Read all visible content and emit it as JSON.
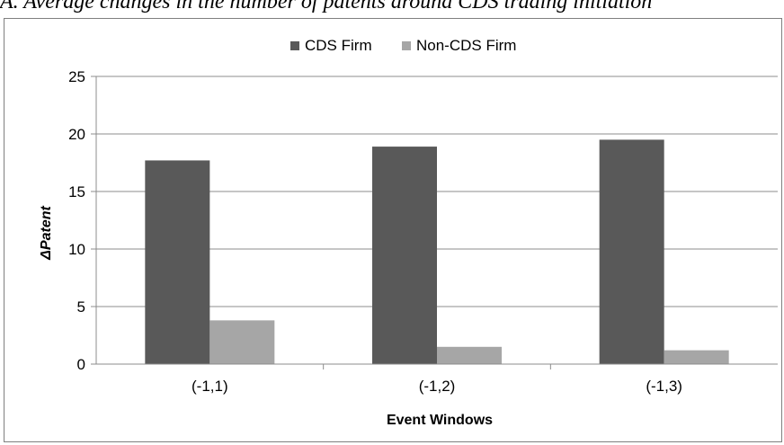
{
  "caption": "A. Average changes in the number of patents around CDS trading initiation",
  "colors": {
    "cds": "#595959",
    "non_cds": "#a6a6a6",
    "grid": "#8c8c8c",
    "axis": "#8c8c8c"
  },
  "chart_data": {
    "type": "bar",
    "title": "",
    "xlabel": "Event Windows",
    "ylabel": "ΔPatent",
    "categories": [
      "(-1,1)",
      "(-1,2)",
      "(-1,3)"
    ],
    "series": [
      {
        "name": "CDS Firm",
        "values": [
          17.7,
          18.9,
          19.5
        ]
      },
      {
        "name": "Non-CDS Firm",
        "values": [
          3.8,
          1.5,
          1.2
        ]
      }
    ],
    "ylim": [
      0,
      25
    ],
    "yticks": [
      0,
      5,
      10,
      15,
      20,
      25
    ],
    "grid": true,
    "legend_position": "top-center"
  }
}
